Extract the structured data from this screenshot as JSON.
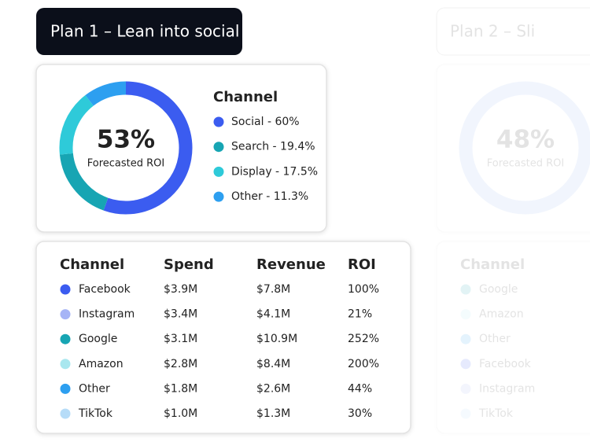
{
  "plan1": {
    "title": "Plan 1 – Lean into social",
    "roi": "53%",
    "roi_label": "Forecasted ROI",
    "legend_title": "Channel",
    "segments": [
      {
        "label": "Social - 60%",
        "value": 60,
        "color": "#3b5cf0"
      },
      {
        "label": "Search - 19.4%",
        "value": 19.4,
        "color": "#17a5b3"
      },
      {
        "label": "Display - 17.5%",
        "value": 17.5,
        "color": "#2ecad9"
      },
      {
        "label": "Other - 11.3%",
        "value": 11.3,
        "color": "#2d9ff0"
      }
    ],
    "table": {
      "header": [
        "Channel",
        "Spend",
        "Revenue",
        "ROI"
      ],
      "rows": [
        {
          "color": "#3b5cf0",
          "cells": [
            "Facebook",
            "$3.9M",
            "$7.8M",
            "100%"
          ]
        },
        {
          "color": "#a6b4f6",
          "cells": [
            "Instagram",
            "$3.4M",
            "$4.1M",
            "21%"
          ]
        },
        {
          "color": "#17a5b3",
          "cells": [
            "Google",
            "$3.1M",
            "$10.9M",
            "252%"
          ]
        },
        {
          "color": "#a9e7ef",
          "cells": [
            "Amazon",
            "$2.8M",
            "$8.4M",
            "200%"
          ]
        },
        {
          "color": "#2d9ff0",
          "cells": [
            "Other",
            "$1.8M",
            "$2.6M",
            "44%"
          ]
        },
        {
          "color": "#b6dcf8",
          "cells": [
            "TikTok",
            "$1.0M",
            "$1.3M",
            "30%"
          ]
        }
      ]
    }
  },
  "plan2": {
    "title": "Plan 2 – Sli",
    "roi": "48%",
    "roi_label": "Forecasted ROI",
    "table": {
      "header": [
        "Channel"
      ],
      "rows": [
        {
          "color": "#17a5b3",
          "cells": [
            "Google"
          ]
        },
        {
          "color": "#a9e7ef",
          "cells": [
            "Amazon"
          ]
        },
        {
          "color": "#2d9ff0",
          "cells": [
            "Other"
          ]
        },
        {
          "color": "#3b5cf0",
          "cells": [
            "Facebook"
          ]
        },
        {
          "color": "#a6b4f6",
          "cells": [
            "Instagram"
          ]
        },
        {
          "color": "#b6dcf8",
          "cells": [
            "TikTok"
          ]
        }
      ]
    }
  }
}
